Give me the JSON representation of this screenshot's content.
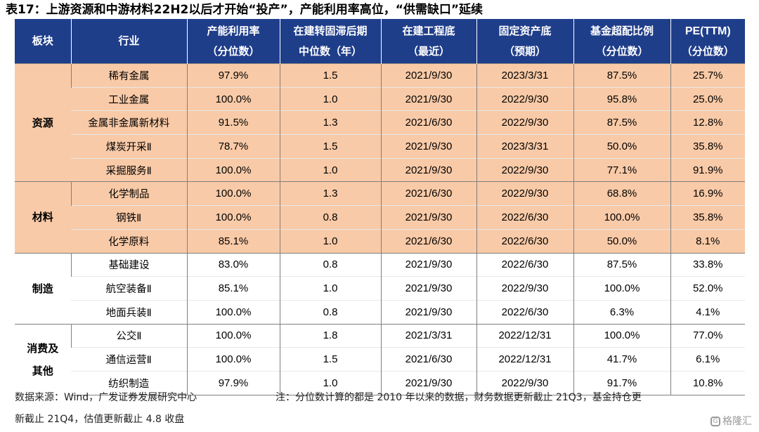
{
  "title": "表17：上游资源和中游材料22H2以后才开始“投产”，产能利用率高位，“供需缺口”延续",
  "headers": [
    {
      "l1": "板块",
      "l2": ""
    },
    {
      "l1": "行业",
      "l2": ""
    },
    {
      "l1": "产能利用率",
      "l2": "（分位数）"
    },
    {
      "l1": "在建转固滞后期",
      "l2": "中位数（年）"
    },
    {
      "l1": "在建工程底",
      "l2": "（最近）"
    },
    {
      "l1": "固定资产底",
      "l2": "（预期）"
    },
    {
      "l1": "基金超配比例",
      "l2": "（分位数）"
    },
    {
      "l1": "PE(TTM)",
      "l2": "（分位数）"
    }
  ],
  "groups": [
    {
      "sector": "资源",
      "rows": [
        [
          "稀有金属",
          "97.9%",
          "1.5",
          "2021/9/30",
          "2023/3/31",
          "87.5%",
          "25.7%"
        ],
        [
          "工业金属",
          "100.0%",
          "1.0",
          "2021/9/30",
          "2022/9/30",
          "95.8%",
          "25.0%"
        ],
        [
          "金属非金属新材料",
          "91.5%",
          "1.3",
          "2021/6/30",
          "2022/9/30",
          "87.5%",
          "12.8%"
        ],
        [
          "煤炭开采Ⅱ",
          "78.7%",
          "1.5",
          "2021/9/30",
          "2023/3/31",
          "50.0%",
          "35.8%"
        ],
        [
          "采掘服务Ⅱ",
          "100.0%",
          "1.0",
          "2021/9/30",
          "2022/9/30",
          "77.1%",
          "91.9%"
        ]
      ]
    },
    {
      "sector": "材料",
      "rows": [
        [
          "化学制品",
          "100.0%",
          "1.3",
          "2021/6/30",
          "2022/9/30",
          "68.8%",
          "16.9%"
        ],
        [
          "钢铁Ⅱ",
          "100.0%",
          "0.8",
          "2021/9/30",
          "2022/6/30",
          "100.0%",
          "35.8%"
        ],
        [
          "化学原料",
          "85.1%",
          "1.0",
          "2021/6/30",
          "2022/6/30",
          "50.0%",
          "8.1%"
        ]
      ]
    },
    {
      "sector": "制造",
      "rows": [
        [
          "基础建设",
          "83.0%",
          "0.8",
          "2021/9/30",
          "2022/6/30",
          "87.5%",
          "33.8%"
        ],
        [
          "航空装备Ⅱ",
          "85.1%",
          "1.0",
          "2021/9/30",
          "2022/9/30",
          "100.0%",
          "52.0%"
        ],
        [
          "地面兵装Ⅱ",
          "100.0%",
          "0.8",
          "2021/9/30",
          "2022/6/30",
          "6.3%",
          "4.1%"
        ]
      ]
    },
    {
      "sector": "消费及其他",
      "sector_lines": [
        "消费及",
        "其他"
      ],
      "rows": [
        [
          "公交Ⅱ",
          "100.0%",
          "1.8",
          "2021/3/31",
          "2022/12/31",
          "100.0%",
          "77.0%"
        ],
        [
          "通信运营Ⅱ",
          "100.0%",
          "1.5",
          "2021/6/30",
          "2022/12/31",
          "41.7%",
          "6.1%"
        ],
        [
          "纺织制造",
          "97.9%",
          "1.0",
          "2021/9/30",
          "2022/9/30",
          "91.7%",
          "10.8%"
        ]
      ]
    }
  ],
  "source_note": "数据来源：Wind，广发证券发展研究中心",
  "footnote_line1": "注：分位数计算的都是 2010 年以来的数据，财务数据更新截止 21Q3，基金持仓更",
  "footnote_line2": "新截止 21Q4，估值更新截止 4.8 收盘",
  "watermark": "格隆汇"
}
